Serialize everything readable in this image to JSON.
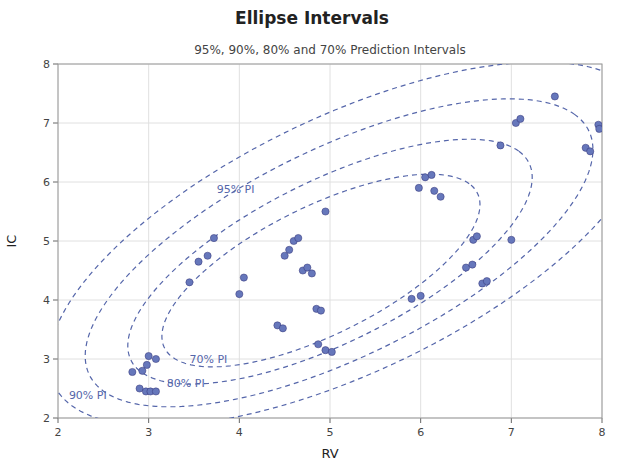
{
  "chart_data": {
    "type": "scatter",
    "title": "Ellipse Intervals",
    "subtitle": "95%, 90%, 80% and 70% Prediction Intervals",
    "x_label": "RV",
    "y_label": "IC",
    "xlim": [
      2,
      8
    ],
    "ylim": [
      2,
      8
    ],
    "xticks": [
      2,
      3,
      4,
      5,
      6,
      7,
      8
    ],
    "yticks": [
      2,
      3,
      4,
      5,
      6,
      7,
      8
    ],
    "grid": true,
    "color": "#6677bb",
    "x": [
      2.82,
      2.9,
      2.97,
      3.02,
      3.08,
      2.93,
      2.98,
      3.0,
      3.08,
      3.45,
      3.55,
      3.65,
      3.72,
      4.0,
      4.05,
      4.42,
      4.48,
      4.5,
      4.55,
      4.6,
      4.65,
      4.7,
      4.75,
      4.8,
      4.85,
      4.9,
      4.87,
      4.95,
      5.02,
      4.95,
      5.9,
      6.0,
      5.98,
      6.05,
      6.12,
      6.15,
      6.22,
      6.5,
      6.57,
      6.58,
      6.62,
      6.68,
      6.73,
      6.88,
      7.0,
      7.05,
      7.1,
      7.48,
      7.82,
      7.87,
      7.96,
      7.97
    ],
    "values": [
      2.78,
      2.5,
      2.45,
      2.45,
      2.45,
      2.8,
      2.9,
      3.05,
      3.0,
      4.3,
      4.65,
      4.75,
      5.05,
      4.1,
      4.38,
      3.57,
      3.52,
      4.75,
      4.85,
      5.0,
      5.05,
      4.5,
      4.55,
      4.45,
      3.85,
      3.82,
      3.25,
      3.15,
      3.12,
      5.5,
      4.02,
      4.07,
      5.9,
      6.08,
      6.12,
      5.85,
      5.75,
      4.55,
      4.6,
      5.02,
      5.08,
      4.28,
      4.32,
      6.62,
      5.02,
      7.0,
      7.07,
      7.45,
      6.58,
      6.52,
      6.97,
      6.9
    ],
    "ellipses": [
      {
        "name": "95% PI",
        "cx": 5.2,
        "cy": 4.95,
        "width": 8.2,
        "height": 3.8,
        "angle": 42,
        "label_x": 3.75,
        "label_y": 5.82,
        "color": "#5566aa"
      },
      {
        "name": "90% PI",
        "cx": 5.1,
        "cy": 4.8,
        "width": 7.0,
        "height": 3.1,
        "angle": 42,
        "label_x": 2.12,
        "label_y": 2.32,
        "color": "#5566aa"
      },
      {
        "name": "80% PI",
        "cx": 5.0,
        "cy": 4.65,
        "width": 5.6,
        "height": 2.4,
        "angle": 42,
        "label_x": 3.2,
        "label_y": 2.53,
        "color": "#5566aa"
      },
      {
        "name": "70% PI",
        "cx": 4.9,
        "cy": 4.5,
        "width": 4.4,
        "height": 1.9,
        "angle": 42,
        "label_x": 3.45,
        "label_y": 2.93,
        "color": "#5566aa"
      }
    ]
  }
}
